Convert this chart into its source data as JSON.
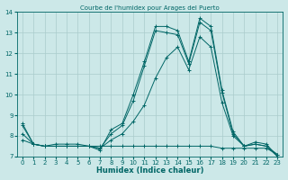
{
  "title": "Courbe de l'humidex pour Arages del Puerto",
  "xlabel": "Humidex (Indice chaleur)",
  "background_color": "#cce8e8",
  "grid_color": "#aacccc",
  "line_color": "#006666",
  "title_color": "#006666",
  "xlim": [
    -0.5,
    23.5
  ],
  "ylim": [
    7,
    14
  ],
  "yticks": [
    7,
    8,
    9,
    10,
    11,
    12,
    13,
    14
  ],
  "xticks": [
    0,
    1,
    2,
    3,
    4,
    5,
    6,
    7,
    8,
    9,
    10,
    11,
    12,
    13,
    14,
    15,
    16,
    17,
    18,
    19,
    20,
    21,
    22,
    23
  ],
  "series": [
    [
      8.6,
      7.6,
      7.5,
      7.6,
      7.6,
      7.6,
      7.5,
      7.3,
      8.3,
      8.6,
      10.0,
      11.6,
      13.3,
      13.3,
      13.1,
      11.6,
      13.7,
      13.3,
      10.2,
      8.2,
      7.5,
      7.7,
      7.6,
      7.0
    ],
    [
      8.5,
      7.6,
      7.5,
      7.5,
      7.5,
      7.5,
      7.5,
      7.4,
      8.1,
      8.5,
      9.7,
      11.4,
      13.1,
      13.0,
      12.9,
      11.5,
      13.5,
      13.1,
      10.1,
      8.1,
      7.5,
      7.6,
      7.5,
      7.0
    ],
    [
      8.1,
      7.6,
      7.5,
      7.5,
      7.5,
      7.5,
      7.5,
      7.4,
      7.8,
      8.1,
      8.7,
      9.5,
      10.8,
      11.8,
      12.3,
      11.2,
      12.8,
      12.3,
      9.6,
      8.0,
      7.5,
      7.6,
      7.5,
      7.1
    ],
    [
      7.8,
      7.6,
      7.5,
      7.5,
      7.5,
      7.5,
      7.5,
      7.5,
      7.5,
      7.5,
      7.5,
      7.5,
      7.5,
      7.5,
      7.5,
      7.5,
      7.5,
      7.5,
      7.4,
      7.4,
      7.4,
      7.4,
      7.4,
      7.1
    ]
  ]
}
